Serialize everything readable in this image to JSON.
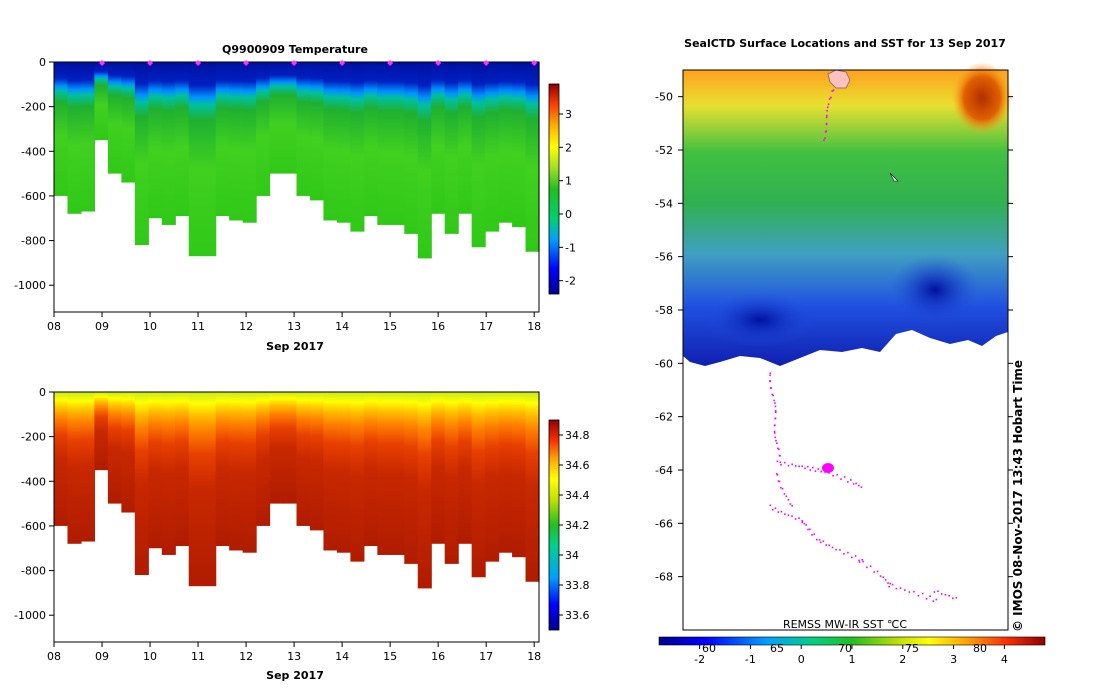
{
  "chart_data": [
    {
      "type": "heatmap",
      "title": "Q9900909  Temperature",
      "xlabel": "Sep 2017",
      "ylabel": "",
      "x_ticks": [
        "08",
        "09",
        "10",
        "11",
        "12",
        "13",
        "14",
        "15",
        "16",
        "17",
        "18"
      ],
      "x_range": [
        8,
        18.1
      ],
      "y_ticks": [
        0,
        -200,
        -400,
        -600,
        -800,
        -1000
      ],
      "ylim": [
        -1120,
        0
      ],
      "colorbar": {
        "ticks": [
          3,
          2,
          1,
          0,
          -1,
          -2
        ],
        "range": [
          -2.4,
          3.9
        ]
      },
      "profile_max_depth_m": [
        -600,
        -680,
        -670,
        -350,
        -500,
        -540,
        -820,
        -700,
        -730,
        -690,
        -870,
        -870,
        -690,
        -710,
        -720,
        -600,
        -500,
        -500,
        -600,
        -620,
        -710,
        -720,
        -760,
        -690,
        -730,
        -730,
        -770,
        -880,
        -680,
        -770,
        -680,
        -830,
        -760,
        -720,
        -740,
        -850
      ],
      "surface_markers": [
        "09",
        "10",
        "11",
        "12",
        "13",
        "14",
        "15",
        "16",
        "17",
        "18"
      ]
    },
    {
      "type": "heatmap",
      "title": "",
      "xlabel": "Sep 2017",
      "ylabel": "",
      "x_ticks": [
        "08",
        "09",
        "10",
        "11",
        "12",
        "13",
        "14",
        "15",
        "16",
        "17",
        "18"
      ],
      "x_range": [
        8,
        18.1
      ],
      "y_ticks": [
        0,
        -200,
        -400,
        -600,
        -800,
        -1000
      ],
      "ylim": [
        -1120,
        0
      ],
      "colorbar": {
        "ticks": [
          34.8,
          34.6,
          34.4,
          34.2,
          34,
          33.8,
          33.6
        ],
        "range": [
          33.5,
          34.9
        ]
      },
      "profile_max_depth_m": [
        -600,
        -680,
        -670,
        -350,
        -500,
        -540,
        -820,
        -700,
        -730,
        -690,
        -870,
        -870,
        -690,
        -710,
        -720,
        -600,
        -500,
        -500,
        -600,
        -620,
        -710,
        -720,
        -760,
        -690,
        -730,
        -730,
        -770,
        -880,
        -680,
        -770,
        -680,
        -830,
        -760,
        -720,
        -740,
        -850
      ]
    },
    {
      "type": "heatmap",
      "title": "SealCTD Surface Locations and SST for 13 Sep 2017",
      "xlabel": "",
      "ylabel": "",
      "y_ticks": [
        -50,
        -52,
        -54,
        -56,
        -58,
        -60,
        -62,
        -64,
        -66,
        -68
      ],
      "ylim": [
        -70,
        -49
      ],
      "x_ticks": [
        "60",
        "65",
        "70",
        "75",
        "80"
      ],
      "colorbar_label": "REMSS MW-IR SST ℃C",
      "colorbar": {
        "ticks": [
          -2,
          -1,
          0,
          1,
          2,
          3,
          4
        ],
        "range": [
          -2.8,
          4.8
        ]
      },
      "credit": "© IMOS 08-Nov-2017 13:43 Hobart Time"
    }
  ]
}
